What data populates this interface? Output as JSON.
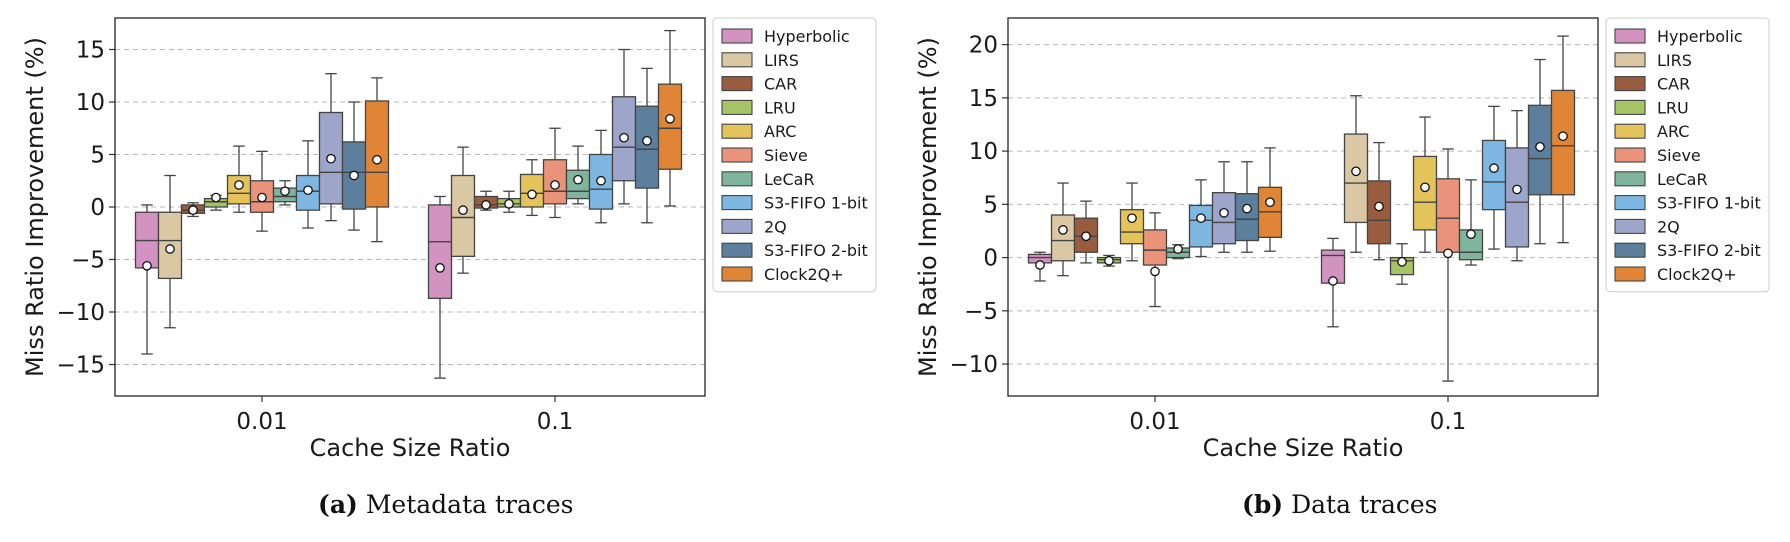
{
  "chart_data": [
    {
      "type": "box",
      "categories": [
        "0.01",
        "0.1"
      ],
      "xlabel": "Cache Size Ratio",
      "ylabel": "Miss Ratio Improvement (%)",
      "ylim": [
        -18,
        18
      ],
      "yticks": [
        -15,
        -10,
        -5,
        0,
        5,
        10,
        15
      ],
      "grid": "horizontal-dashed",
      "legend": "right",
      "series": [
        {
          "name": "Hyperbolic",
          "color": "#d393c0",
          "boxes": [
            {
              "whisker_low": -14,
              "q1": -5.8,
              "median": -3.2,
              "q3": -0.5,
              "whisker_high": 0.2,
              "mean": -5.6
            },
            {
              "whisker_low": -16.3,
              "q1": -8.7,
              "median": -3.3,
              "q3": 0.2,
              "whisker_high": 1.0,
              "mean": -5.8
            }
          ]
        },
        {
          "name": "LIRS",
          "color": "#dac7a3",
          "boxes": [
            {
              "whisker_low": -11.5,
              "q1": -6.8,
              "median": -3.2,
              "q3": -0.5,
              "whisker_high": 3.0,
              "mean": -4.0
            },
            {
              "whisker_low": -6.3,
              "q1": -4.7,
              "median": -1.0,
              "q3": 3.0,
              "whisker_high": 5.7,
              "mean": -0.3
            }
          ]
        },
        {
          "name": "CAR",
          "color": "#9a5c3f",
          "boxes": [
            {
              "whisker_low": -0.9,
              "q1": -0.6,
              "median": -0.3,
              "q3": 0.2,
              "whisker_high": 0.4,
              "mean": -0.3
            },
            {
              "whisker_low": -0.3,
              "q1": -0.1,
              "median": 0.2,
              "q3": 1.0,
              "whisker_high": 1.5,
              "mean": 0.2
            }
          ]
        },
        {
          "name": "LRU",
          "color": "#a6c465",
          "boxes": [
            {
              "whisker_low": -0.3,
              "q1": 0.0,
              "median": 0.5,
              "q3": 0.8,
              "whisker_high": 1.1,
              "mean": 0.9
            },
            {
              "whisker_low": -0.5,
              "q1": 0.0,
              "median": 0.3,
              "q3": 0.8,
              "whisker_high": 1.5,
              "mean": 0.3
            }
          ]
        },
        {
          "name": "ARC",
          "color": "#e4c35a",
          "boxes": [
            {
              "whisker_low": -0.5,
              "q1": 0.3,
              "median": 1.3,
              "q3": 3.0,
              "whisker_high": 5.8,
              "mean": 2.1
            },
            {
              "whisker_low": -0.8,
              "q1": 0.0,
              "median": 1.3,
              "q3": 3.1,
              "whisker_high": 4.5,
              "mean": 1.2
            }
          ]
        },
        {
          "name": "Sieve",
          "color": "#e9947a",
          "boxes": [
            {
              "whisker_low": -2.3,
              "q1": -0.5,
              "median": 0.5,
              "q3": 2.5,
              "whisker_high": 5.3,
              "mean": 0.9
            },
            {
              "whisker_low": -1.0,
              "q1": 0.3,
              "median": 1.5,
              "q3": 4.5,
              "whisker_high": 7.5,
              "mean": 2.1
            }
          ]
        },
        {
          "name": "LeCaR",
          "color": "#7fb59c",
          "boxes": [
            {
              "whisker_low": 0.2,
              "q1": 0.5,
              "median": 1.0,
              "q3": 1.8,
              "whisker_high": 2.5,
              "mean": 1.5
            },
            {
              "whisker_low": 0.3,
              "q1": 0.8,
              "median": 1.5,
              "q3": 3.5,
              "whisker_high": 5.8,
              "mean": 2.6
            }
          ]
        },
        {
          "name": "S3-FIFO 1-bit",
          "color": "#7fb7e3",
          "boxes": [
            {
              "whisker_low": -2.0,
              "q1": -0.3,
              "median": 1.5,
              "q3": 3.0,
              "whisker_high": 6.3,
              "mean": 1.6
            },
            {
              "whisker_low": -1.5,
              "q1": -0.2,
              "median": 1.7,
              "q3": 5.0,
              "whisker_high": 7.3,
              "mean": 2.5
            }
          ]
        },
        {
          "name": "2Q",
          "color": "#9ea5cb",
          "boxes": [
            {
              "whisker_low": -1.3,
              "q1": 0.3,
              "median": 3.3,
              "q3": 9.0,
              "whisker_high": 12.7,
              "mean": 4.6
            },
            {
              "whisker_low": 0.3,
              "q1": 2.5,
              "median": 5.7,
              "q3": 10.5,
              "whisker_high": 15.0,
              "mean": 6.6
            }
          ]
        },
        {
          "name": "S3-FIFO 2-bit",
          "color": "#5b7f9c",
          "boxes": [
            {
              "whisker_low": -2.2,
              "q1": -0.2,
              "median": 3.3,
              "q3": 6.2,
              "whisker_high": 10.0,
              "mean": 3.0
            },
            {
              "whisker_low": -1.5,
              "q1": 1.8,
              "median": 5.5,
              "q3": 9.6,
              "whisker_high": 13.2,
              "mean": 6.3
            }
          ]
        },
        {
          "name": "Clock2Q+",
          "color": "#e08535",
          "boxes": [
            {
              "whisker_low": -3.3,
              "q1": 0.0,
              "median": 3.3,
              "q3": 10.1,
              "whisker_high": 12.3,
              "mean": 4.5
            },
            {
              "whisker_low": 0.1,
              "q1": 3.6,
              "median": 7.5,
              "q3": 11.7,
              "whisker_high": 16.8,
              "mean": 8.4
            }
          ]
        }
      ]
    },
    {
      "type": "box",
      "categories": [
        "0.01",
        "0.1"
      ],
      "xlabel": "Cache Size Ratio",
      "ylabel": "Miss Ratio Improvement (%)",
      "ylim": [
        -13,
        22.5
      ],
      "yticks": [
        -10,
        -5,
        0,
        5,
        10,
        15,
        20
      ],
      "grid": "horizontal-dashed",
      "legend": "right",
      "series": [
        {
          "name": "Hyperbolic",
          "color": "#d393c0",
          "boxes": [
            {
              "whisker_low": -2.2,
              "q1": -0.5,
              "median": 0.0,
              "q3": 0.3,
              "whisker_high": 0.5,
              "mean": -0.7
            },
            {
              "whisker_low": -6.5,
              "q1": -2.4,
              "median": 0.2,
              "q3": 0.7,
              "whisker_high": 1.8,
              "mean": -2.2
            }
          ]
        },
        {
          "name": "LIRS",
          "color": "#dac7a3",
          "boxes": [
            {
              "whisker_low": -1.7,
              "q1": -0.3,
              "median": 1.6,
              "q3": 4.0,
              "whisker_high": 7.0,
              "mean": 2.6
            },
            {
              "whisker_low": 0.5,
              "q1": 3.3,
              "median": 7.0,
              "q3": 11.6,
              "whisker_high": 15.2,
              "mean": 8.1
            }
          ]
        },
        {
          "name": "CAR",
          "color": "#9a5c3f",
          "boxes": [
            {
              "whisker_low": -0.5,
              "q1": 0.5,
              "median": 2.0,
              "q3": 3.7,
              "whisker_high": 5.3,
              "mean": 2.0
            },
            {
              "whisker_low": -0.2,
              "q1": 1.3,
              "median": 3.5,
              "q3": 7.2,
              "whisker_high": 10.8,
              "mean": 4.8
            }
          ]
        },
        {
          "name": "LRU",
          "color": "#a6c465",
          "boxes": [
            {
              "whisker_low": -0.8,
              "q1": -0.5,
              "median": -0.2,
              "q3": 0.0,
              "whisker_high": 0.2,
              "mean": -0.3
            },
            {
              "whisker_low": -2.5,
              "q1": -1.6,
              "median": -0.3,
              "q3": 0.0,
              "whisker_high": 1.3,
              "mean": -0.4
            }
          ]
        },
        {
          "name": "ARC",
          "color": "#e4c35a",
          "boxes": [
            {
              "whisker_low": -0.3,
              "q1": 1.3,
              "median": 2.4,
              "q3": 4.5,
              "whisker_high": 7.0,
              "mean": 3.7
            },
            {
              "whisker_low": 0.5,
              "q1": 2.6,
              "median": 5.2,
              "q3": 9.5,
              "whisker_high": 13.2,
              "mean": 6.6
            }
          ]
        },
        {
          "name": "Sieve",
          "color": "#e9947a",
          "boxes": [
            {
              "whisker_low": -4.6,
              "q1": -0.7,
              "median": 0.7,
              "q3": 2.6,
              "whisker_high": 4.2,
              "mean": -1.3
            },
            {
              "whisker_low": -11.6,
              "q1": 0.5,
              "median": 3.7,
              "q3": 7.4,
              "whisker_high": 10.2,
              "mean": 0.4
            }
          ]
        },
        {
          "name": "LeCaR",
          "color": "#7fb59c",
          "boxes": [
            {
              "whisker_low": -0.1,
              "q1": 0.0,
              "median": 0.5,
              "q3": 0.9,
              "whisker_high": 1.2,
              "mean": 0.8
            },
            {
              "whisker_low": -0.7,
              "q1": -0.2,
              "median": 0.5,
              "q3": 2.6,
              "whisker_high": 7.3,
              "mean": 2.2
            }
          ]
        },
        {
          "name": "S3-FIFO 1-bit",
          "color": "#7fb7e3",
          "boxes": [
            {
              "whisker_low": 0.1,
              "q1": 1.0,
              "median": 3.5,
              "q3": 4.9,
              "whisker_high": 7.3,
              "mean": 3.7
            },
            {
              "whisker_low": 0.8,
              "q1": 4.5,
              "median": 7.1,
              "q3": 11.0,
              "whisker_high": 14.2,
              "mean": 8.4
            }
          ]
        },
        {
          "name": "2Q",
          "color": "#9ea5cb",
          "boxes": [
            {
              "whisker_low": 0.5,
              "q1": 1.3,
              "median": 3.3,
              "q3": 6.1,
              "whisker_high": 9.0,
              "mean": 4.2
            },
            {
              "whisker_low": -0.3,
              "q1": 1.0,
              "median": 5.2,
              "q3": 10.3,
              "whisker_high": 13.8,
              "mean": 6.4
            }
          ]
        },
        {
          "name": "S3-FIFO 2-bit",
          "color": "#5b7f9c",
          "boxes": [
            {
              "whisker_low": 0.5,
              "q1": 1.6,
              "median": 3.6,
              "q3": 6.0,
              "whisker_high": 9.0,
              "mean": 4.6
            },
            {
              "whisker_low": 1.3,
              "q1": 5.9,
              "median": 9.3,
              "q3": 14.3,
              "whisker_high": 18.6,
              "mean": 10.4
            }
          ]
        },
        {
          "name": "Clock2Q+",
          "color": "#e08535",
          "boxes": [
            {
              "whisker_low": 0.6,
              "q1": 1.9,
              "median": 4.3,
              "q3": 6.6,
              "whisker_high": 10.3,
              "mean": 5.2
            },
            {
              "whisker_low": 1.4,
              "q1": 5.9,
              "median": 10.5,
              "q3": 15.7,
              "whisker_high": 20.8,
              "mean": 11.4
            }
          ]
        }
      ]
    }
  ],
  "captions": [
    {
      "tag": "(a)",
      "text": "Metadata traces"
    },
    {
      "tag": "(b)",
      "text": "Data traces"
    }
  ]
}
